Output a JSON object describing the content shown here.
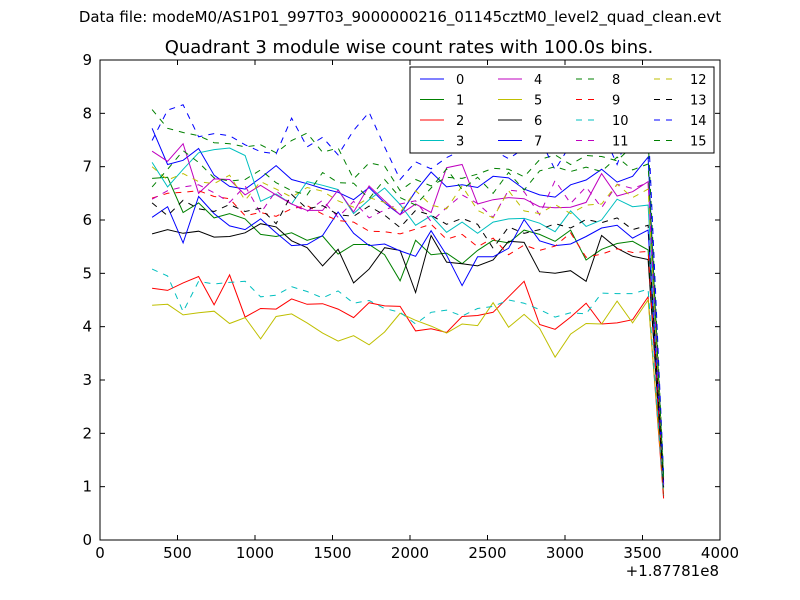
{
  "figure": {
    "suptitle": "Data file: modeM0/AS1P01_997T03_9000000216_01145cztM0_level2_quad_clean.evt",
    "x_offset_label": "+1.87781e8"
  },
  "chart_data": {
    "type": "line",
    "title": "Quadrant 3 module wise count rates with 100.0s bins.",
    "xlabel": "",
    "ylabel": "",
    "xlim": [
      0,
      4000
    ],
    "ylim": [
      0,
      9
    ],
    "x_offset": 187781000,
    "xticks": [
      0,
      500,
      1000,
      1500,
      2000,
      2500,
      3000,
      3500,
      4000
    ],
    "yticks": [
      0,
      1,
      2,
      3,
      4,
      5,
      6,
      7,
      8,
      9
    ],
    "grid": false,
    "legend_position": "top-right",
    "legend_columns": 4,
    "x": [
      336,
      436,
      536,
      636,
      736,
      836,
      936,
      1036,
      1136,
      1236,
      1336,
      1436,
      1536,
      1636,
      1736,
      1836,
      1936,
      2036,
      2136,
      2236,
      2336,
      2436,
      2536,
      2636,
      2736,
      2836,
      2936,
      3036,
      3136,
      3236,
      3336,
      3436,
      3536,
      3636
    ],
    "series": [
      {
        "name": "0",
        "color": "#0000ff",
        "dash": "solid",
        "values": [
          7.72,
          7.04,
          7.12,
          7.34,
          6.84,
          6.63,
          6.58,
          6.79,
          7.02,
          6.76,
          6.68,
          6.59,
          6.52,
          6.38,
          6.61,
          6.32,
          6.1,
          6.54,
          6.9,
          6.62,
          6.66,
          6.61,
          6.82,
          6.79,
          6.58,
          6.47,
          6.43,
          6.66,
          6.75,
          6.95,
          6.71,
          6.82,
          7.18,
          1.05
        ]
      },
      {
        "name": "1",
        "color": "#008000",
        "dash": "solid",
        "values": [
          6.78,
          6.8,
          6.14,
          6.32,
          6.04,
          6.12,
          6.02,
          5.73,
          5.69,
          5.76,
          5.62,
          5.7,
          5.36,
          5.54,
          5.54,
          5.35,
          4.86,
          5.62,
          5.35,
          5.38,
          5.18,
          5.43,
          5.62,
          5.57,
          5.81,
          5.73,
          5.6,
          5.81,
          5.25,
          5.45,
          5.56,
          5.6,
          5.44,
          0.82
        ]
      },
      {
        "name": "2",
        "color": "#ff0000",
        "dash": "solid",
        "values": [
          4.72,
          4.68,
          4.82,
          4.94,
          4.41,
          4.97,
          4.18,
          4.34,
          4.33,
          4.52,
          4.42,
          4.43,
          4.33,
          4.17,
          4.45,
          4.39,
          4.38,
          3.92,
          3.96,
          3.89,
          4.19,
          4.21,
          4.27,
          4.56,
          4.85,
          4.04,
          3.95,
          4.18,
          4.44,
          4.05,
          4.07,
          4.13,
          4.56,
          0.78
        ]
      },
      {
        "name": "3",
        "color": "#00bfbf",
        "dash": "solid",
        "values": [
          7.08,
          6.62,
          6.95,
          7.26,
          7.32,
          7.35,
          7.21,
          6.35,
          6.49,
          6.3,
          6.72,
          6.65,
          6.57,
          6.12,
          6.38,
          6.6,
          6.29,
          5.9,
          6.08,
          5.77,
          5.96,
          5.75,
          5.96,
          6.02,
          6.03,
          5.94,
          5.78,
          6.17,
          5.88,
          6.0,
          6.39,
          6.25,
          6.28,
          1.12
        ]
      },
      {
        "name": "4",
        "color": "#bf00bf",
        "dash": "solid",
        "values": [
          7.29,
          7.1,
          7.43,
          6.5,
          6.77,
          6.76,
          6.47,
          6.65,
          6.47,
          6.3,
          6.18,
          6.18,
          6.56,
          6.15,
          6.64,
          6.36,
          6.1,
          6.3,
          6.14,
          6.98,
          7.04,
          6.3,
          6.38,
          6.42,
          6.4,
          6.25,
          6.23,
          6.24,
          6.33,
          6.87,
          6.45,
          6.53,
          6.72,
          1.1
        ]
      },
      {
        "name": "5",
        "color": "#bfbf00",
        "dash": "solid",
        "values": [
          4.4,
          4.42,
          4.22,
          4.26,
          4.29,
          4.06,
          4.17,
          3.77,
          4.19,
          4.24,
          4.07,
          3.88,
          3.73,
          3.83,
          3.66,
          3.9,
          4.25,
          4.12,
          4.01,
          3.88,
          4.05,
          4.02,
          4.45,
          3.99,
          4.23,
          3.97,
          3.43,
          3.86,
          4.06,
          4.05,
          4.48,
          4.07,
          4.5,
          0.95
        ]
      },
      {
        "name": "6",
        "color": "#000000",
        "dash": "solid",
        "values": [
          5.74,
          5.82,
          5.75,
          5.79,
          5.68,
          5.69,
          5.76,
          5.93,
          5.87,
          5.61,
          5.48,
          5.14,
          5.45,
          4.82,
          5.08,
          5.48,
          5.43,
          4.64,
          5.71,
          5.21,
          5.18,
          5.14,
          5.25,
          5.6,
          5.58,
          5.03,
          5.0,
          5.05,
          4.85,
          5.71,
          5.47,
          5.32,
          5.26,
          0.98
        ]
      },
      {
        "name": "7",
        "color": "#0000ff",
        "dash": "solid",
        "values": [
          6.05,
          6.25,
          5.57,
          6.44,
          6.12,
          5.89,
          5.82,
          6.02,
          5.76,
          5.52,
          5.54,
          5.71,
          6.15,
          5.75,
          5.52,
          5.55,
          5.42,
          5.32,
          5.8,
          5.34,
          4.77,
          5.31,
          5.31,
          5.47,
          6.01,
          5.61,
          5.52,
          5.55,
          5.69,
          5.85,
          5.9,
          5.66,
          5.81,
          1.03
        ]
      },
      {
        "name": "8",
        "color": "#008000",
        "dash": "dashed",
        "values": [
          8.07,
          7.72,
          7.64,
          7.58,
          7.45,
          7.43,
          7.37,
          7.41,
          7.26,
          7.49,
          7.63,
          7.27,
          7.35,
          6.77,
          7.07,
          7.01,
          6.55,
          6.76,
          6.64,
          6.8,
          6.78,
          6.86,
          6.97,
          6.95,
          6.81,
          7.13,
          7.22,
          7.04,
          7.21,
          7.19,
          7.11,
          7.39,
          7.53,
          1.18
        ]
      },
      {
        "name": "9",
        "color": "#ff0000",
        "dash": "dashed",
        "values": [
          6.41,
          6.5,
          6.52,
          6.55,
          6.44,
          6.4,
          6.08,
          6.14,
          6.07,
          6.21,
          6.27,
          6.11,
          5.99,
          5.96,
          5.79,
          5.78,
          5.74,
          5.83,
          5.92,
          5.64,
          5.73,
          5.5,
          5.66,
          5.35,
          5.53,
          5.43,
          5.51,
          5.76,
          5.3,
          5.36,
          5.46,
          5.39,
          5.41,
          0.86
        ]
      },
      {
        "name": "10",
        "color": "#00bfbf",
        "dash": "dashed",
        "values": [
          5.08,
          4.95,
          4.28,
          4.85,
          4.8,
          4.83,
          4.85,
          4.56,
          4.59,
          4.75,
          4.66,
          4.54,
          4.67,
          4.44,
          4.49,
          4.34,
          4.27,
          4.05,
          4.27,
          4.31,
          4.2,
          4.34,
          4.38,
          4.5,
          4.44,
          4.32,
          4.18,
          4.26,
          4.24,
          4.63,
          4.62,
          4.62,
          4.7,
          0.84
        ]
      },
      {
        "name": "11",
        "color": "#bf00bf",
        "dash": "dashed",
        "values": [
          6.39,
          6.55,
          6.62,
          6.66,
          6.51,
          6.33,
          6.64,
          6.13,
          6.55,
          6.29,
          6.16,
          6.37,
          6.05,
          6.35,
          6.04,
          6.19,
          6.3,
          6.36,
          5.97,
          6.23,
          6.47,
          6.31,
          6.05,
          6.56,
          6.53,
          6.1,
          6.74,
          6.31,
          6.62,
          6.23,
          6.67,
          6.59,
          6.7,
          1.06
        ]
      },
      {
        "name": "12",
        "color": "#bfbf00",
        "dash": "dashed",
        "values": [
          7.0,
          6.75,
          6.87,
          6.72,
          6.68,
          6.84,
          6.37,
          6.72,
          6.58,
          6.43,
          6.61,
          6.54,
          6.36,
          6.24,
          6.42,
          6.33,
          6.14,
          6.55,
          6.28,
          6.21,
          6.64,
          6.18,
          6.04,
          6.55,
          6.17,
          6.12,
          6.29,
          6.12,
          6.28,
          6.3,
          6.67,
          6.42,
          6.58,
          1.09
        ]
      },
      {
        "name": "13",
        "color": "#000000",
        "dash": "dashed",
        "values": [
          6.32,
          6.08,
          6.37,
          6.21,
          6.16,
          6.29,
          6.16,
          6.22,
          5.93,
          6.48,
          6.21,
          6.27,
          6.1,
          6.07,
          6.26,
          6.09,
          5.86,
          6.18,
          6.09,
          5.92,
          6.03,
          5.92,
          5.47,
          5.87,
          5.75,
          5.82,
          5.93,
          5.85,
          6.01,
          5.95,
          6.04,
          5.82,
          5.9,
          1.0
        ]
      },
      {
        "name": "14",
        "color": "#0000ff",
        "dash": "dashed",
        "values": [
          7.49,
          8.06,
          8.16,
          7.56,
          7.62,
          7.58,
          7.41,
          7.28,
          7.24,
          7.91,
          7.37,
          7.55,
          7.22,
          7.68,
          8.02,
          7.37,
          6.76,
          7.09,
          6.96,
          7.17,
          7.31,
          7.38,
          7.31,
          7.15,
          7.34,
          7.54,
          6.94,
          7.42,
          7.49,
          7.68,
          7.04,
          7.83,
          7.84,
          1.22
        ]
      },
      {
        "name": "15",
        "color": "#008000",
        "dash": "dashed",
        "values": [
          6.62,
          6.95,
          7.3,
          7.08,
          6.79,
          6.73,
          6.76,
          6.94,
          6.7,
          6.55,
          6.47,
          6.89,
          6.7,
          6.69,
          6.4,
          6.76,
          6.42,
          6.28,
          6.6,
          6.96,
          6.57,
          6.8,
          6.5,
          6.89,
          6.56,
          6.92,
          7.0,
          6.91,
          6.99,
          6.91,
          7.18,
          6.94,
          7.05,
          1.15
        ]
      }
    ]
  }
}
